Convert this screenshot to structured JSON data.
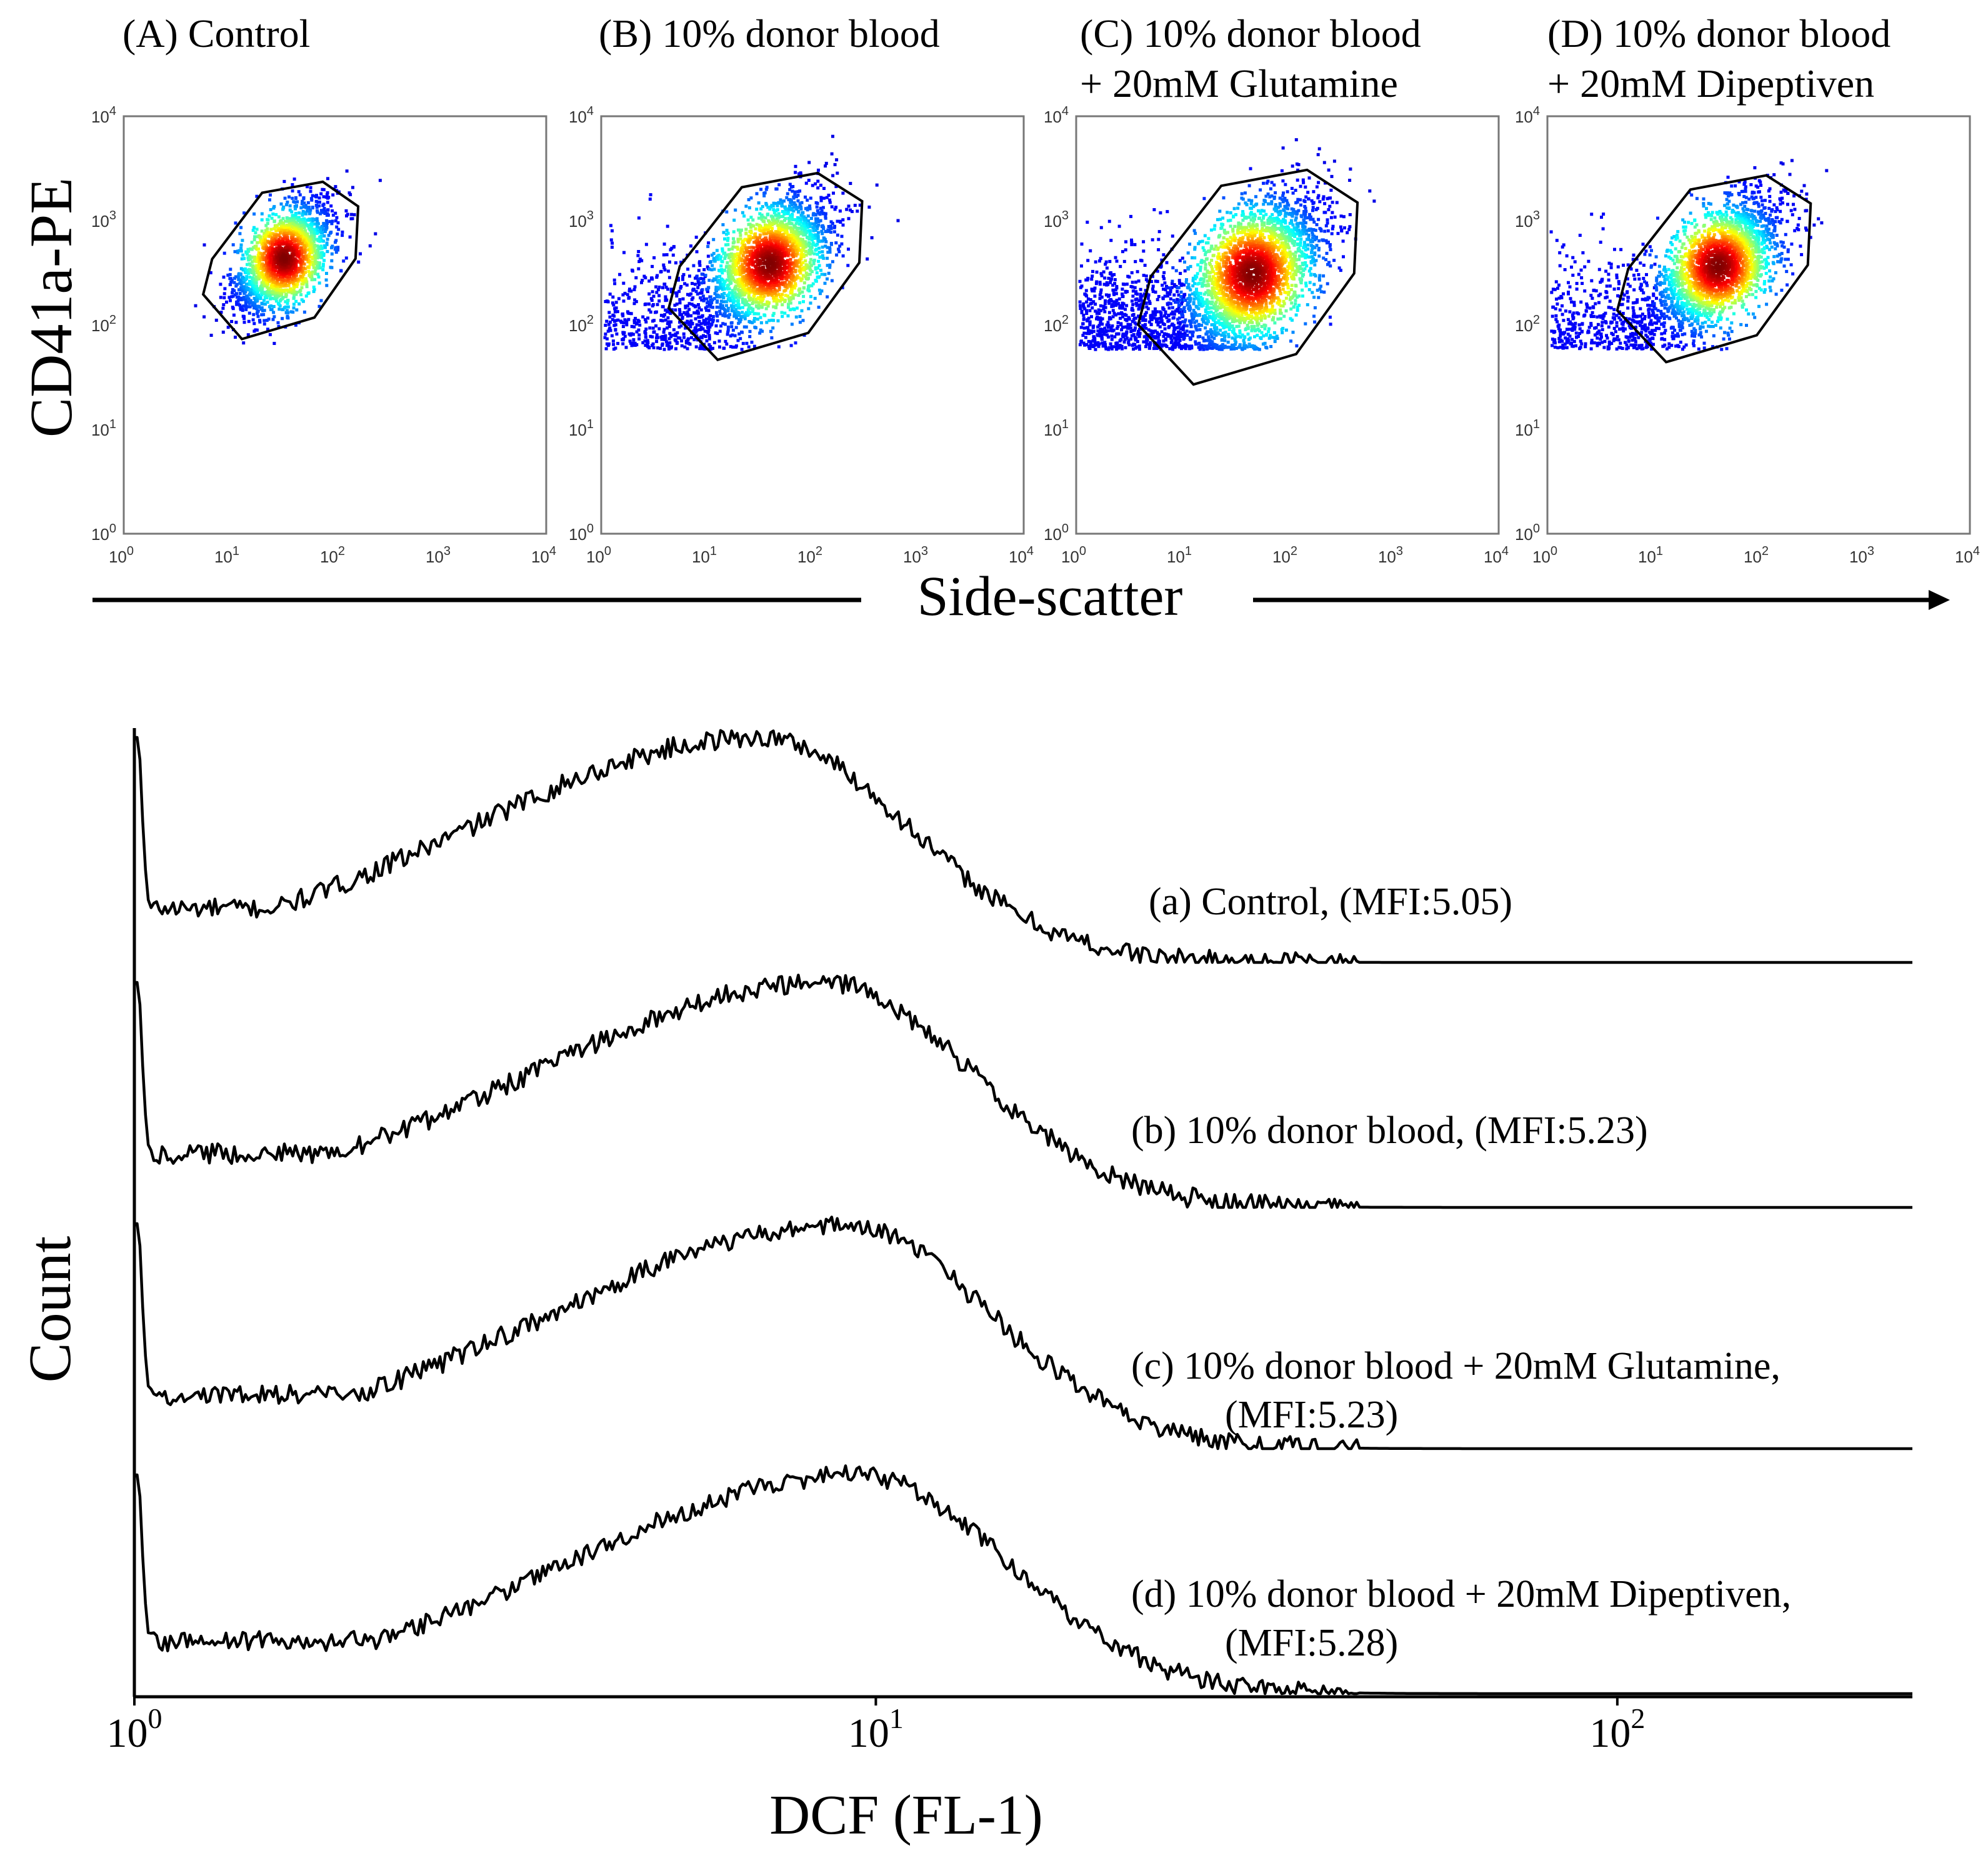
{
  "chart_data": [
    {
      "type": "scatter",
      "panels": [
        {
          "id": "A",
          "title_lines": [
            "(A) Control"
          ],
          "centroid": [
            32,
            450
          ],
          "density": "tight",
          "n_points": 1900
        },
        {
          "id": "B",
          "title_lines": [
            "(B) 10% donor blood"
          ],
          "centroid": [
            38,
            400
          ],
          "density": "medium",
          "n_points": 2300
        },
        {
          "id": "C",
          "title_lines": [
            "(C) 10% donor blood",
            "+ 20mM Glutamine"
          ],
          "centroid": [
            45,
            320
          ],
          "density": "wide",
          "n_points": 2800
        },
        {
          "id": "D",
          "title_lines": [
            "(D) 10% donor blood",
            "+ 20mM Dipeptiven"
          ],
          "centroid": [
            40,
            380
          ],
          "density": "medium",
          "n_points": 2400
        }
      ],
      "x_scale": "log",
      "y_scale": "log",
      "xlim": [
        1,
        10000
      ],
      "ylim": [
        1,
        10000
      ],
      "ticks": {
        "base": "10",
        "exponents": [
          "0",
          "1",
          "2",
          "3",
          "4"
        ]
      },
      "ylabel": "CD41a-PE",
      "xlabel": "Side-scatter",
      "gate": "polygon"
    },
    {
      "type": "line",
      "x_scale": "log",
      "xlim": [
        1,
        250
      ],
      "ticks": {
        "base": "10",
        "exponents": [
          "0",
          "1",
          "2"
        ],
        "values": [
          1,
          10,
          100
        ]
      },
      "xlabel": "DCF (FL-1)",
      "ylabel": "Count",
      "series": [
        {
          "name": "(a) Control, (MFI:5.05)",
          "label_lines": [
            "(a) Control, (MFI:5.05)"
          ],
          "mfi": 5.05,
          "peak_x": 7.0
        },
        {
          "name": "(b) 10% donor blood, (MFI:5.23)",
          "label_lines": [
            "(b) 10% donor blood, (MFI:5.23)"
          ],
          "mfi": 5.23,
          "peak_x": 8.5
        },
        {
          "name": "(c) 10% donor blood + 20mM Glutamine, (MFI:5.23)",
          "label_lines": [
            "(c) 10% donor blood + 20mM Glutamine,",
            "(MFI:5.23)"
          ],
          "mfi": 5.23,
          "peak_x": 9.0
        },
        {
          "name": "(d) 10% donor blood + 20mM Dipeptiven, (MFI:5.28)",
          "label_lines": [
            "(d) 10% donor blood + 20mM Dipeptiven,",
            "(MFI:5.28)"
          ],
          "mfi": 5.28,
          "peak_x": 9.5
        }
      ]
    }
  ]
}
